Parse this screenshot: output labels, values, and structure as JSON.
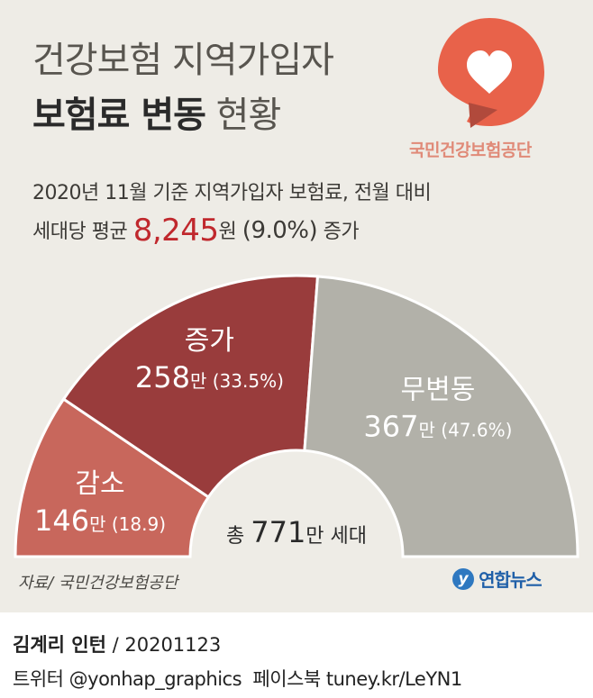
{
  "title": {
    "line1": "건강보험 지역가입자",
    "line2_bold": "보험료 변동",
    "line2_rest": "현황"
  },
  "logo": {
    "name": "국민건강보험공단",
    "icon": "heart-speech-bubble-icon",
    "color": "#e8624a"
  },
  "subtitle": {
    "line1": "2020년 11월 기준 지역가입자 보험료, 전월 대비",
    "line2_prefix": "세대당 평균",
    "amount": "8,245",
    "unit": "원",
    "pct": "(9.0%)",
    "suffix": "증가"
  },
  "chart_data": {
    "type": "pie",
    "unit": "만",
    "categories": [
      "감소",
      "증가",
      "무변동"
    ],
    "values": [
      146,
      258,
      367
    ],
    "percents": [
      "18.9",
      "33.5",
      "47.6"
    ],
    "value_labels": [
      "146",
      "258",
      "367"
    ],
    "percent_labels": [
      "(18.9)",
      "(33.5%)",
      "(47.6%)"
    ],
    "colors": [
      "#c8675c",
      "#993c3c",
      "#b2b1a9"
    ],
    "total_prefix": "총",
    "total_value": "771",
    "total_unit": "만",
    "total_suffix": "세대"
  },
  "source": "자료/ 국민건강보험공단",
  "agency": {
    "mark": "y",
    "name": "연합뉴스"
  },
  "credit": {
    "author": "김계리 인턴",
    "date": "/ 20201123",
    "twitter": "트위터 @yonhap_graphics",
    "facebook": "페이스북 tuney.kr/LeYN1"
  }
}
